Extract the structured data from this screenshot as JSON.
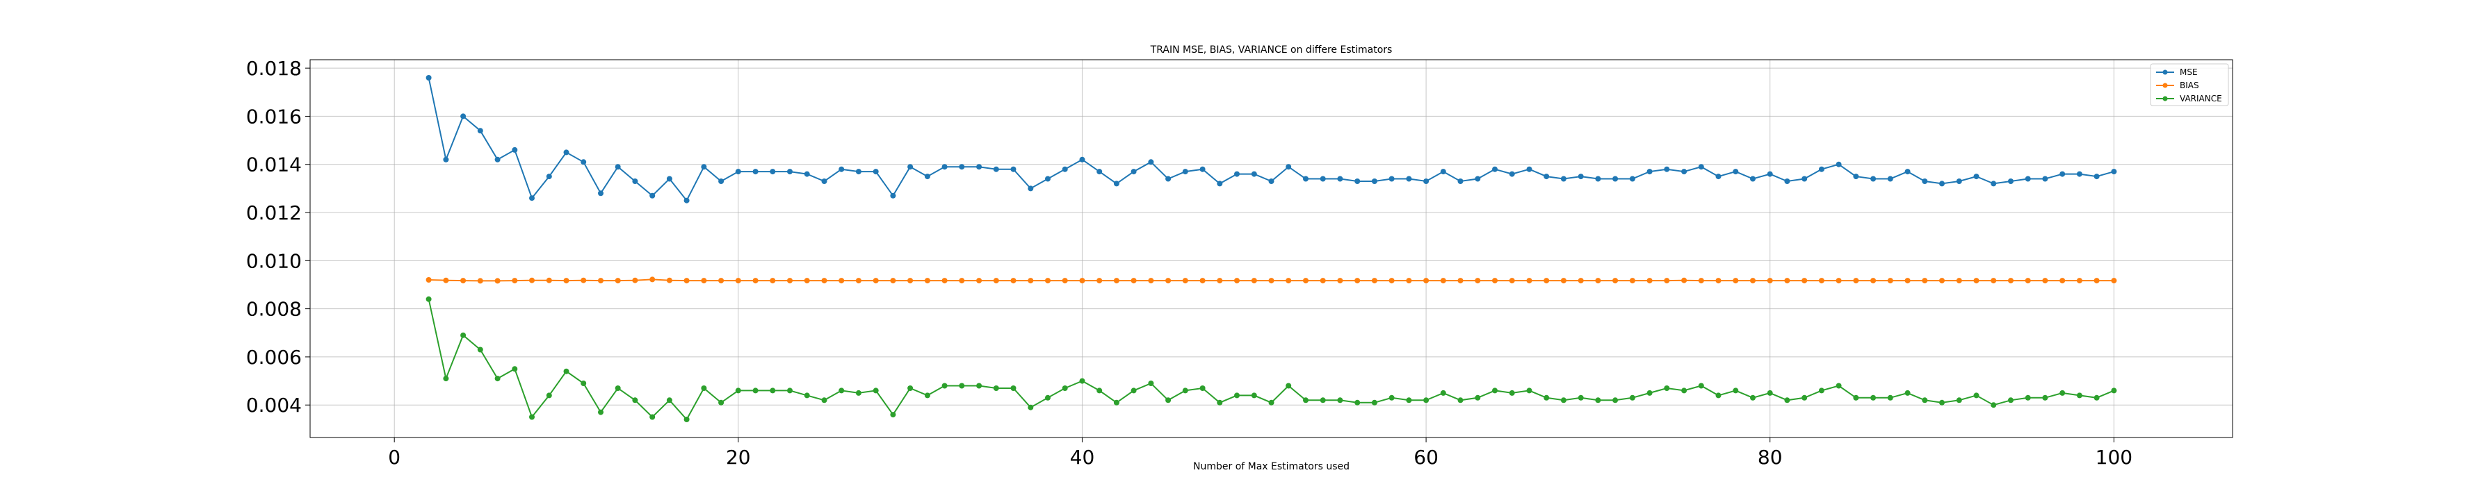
{
  "chart_data": {
    "type": "line",
    "title": "TRAIN MSE, BIAS, VARIANCE on differe Estimators",
    "xlabel": "Number of Max Estimators used",
    "ylabel": "",
    "xlim": [
      -4.9,
      106.9
    ],
    "ylim": [
      0.00265,
      0.01835
    ],
    "xticks": [
      0,
      20,
      40,
      60,
      80,
      100
    ],
    "yticks": [
      0.004,
      0.006,
      0.008,
      0.01,
      0.012,
      0.014,
      0.016,
      0.018
    ],
    "ytick_labels": [
      "0.004",
      "0.006",
      "0.008",
      "0.010",
      "0.012",
      "0.014",
      "0.016",
      "0.018"
    ],
    "grid": true,
    "legend_position": "top-right",
    "series": [
      {
        "name": "MSE",
        "color": "#1f77b4",
        "marker": "circle",
        "x_start": 2,
        "x_step": 1,
        "values": [
          0.0176,
          0.0142,
          0.016,
          0.0154,
          0.0142,
          0.0146,
          0.0126,
          0.0135,
          0.0145,
          0.0141,
          0.0128,
          0.0139,
          0.0133,
          0.0127,
          0.0134,
          0.0125,
          0.0139,
          0.0133,
          0.0137,
          0.0137,
          0.0137,
          0.0137,
          0.0136,
          0.0133,
          0.0138,
          0.0137,
          0.0137,
          0.0127,
          0.0139,
          0.0135,
          0.0139,
          0.0139,
          0.0139,
          0.0138,
          0.0138,
          0.013,
          0.0134,
          0.0138,
          0.0142,
          0.0137,
          0.0132,
          0.0137,
          0.0141,
          0.0134,
          0.0137,
          0.0138,
          0.0132,
          0.0136,
          0.0136,
          0.0133,
          0.0139,
          0.0134,
          0.0134,
          0.0134,
          0.0133,
          0.0133,
          0.0134,
          0.0134,
          0.0133,
          0.0137,
          0.0133,
          0.0134,
          0.0138,
          0.0136,
          0.0138,
          0.0135,
          0.0134,
          0.0135,
          0.0134,
          0.0134,
          0.0134,
          0.0137,
          0.0138,
          0.0137,
          0.0139,
          0.0135,
          0.0137,
          0.0134,
          0.0136,
          0.0133,
          0.0134,
          0.0138,
          0.014,
          0.0135,
          0.0134,
          0.0134,
          0.0137,
          0.0133,
          0.0132,
          0.0133,
          0.0135,
          0.0132,
          0.0133,
          0.0134,
          0.0134,
          0.0136,
          0.0136,
          0.0135,
          0.0137
        ]
      },
      {
        "name": "BIAS",
        "color": "#ff7f0e",
        "marker": "circle",
        "x_start": 2,
        "x_step": 1,
        "values": [
          0.0092,
          0.00918,
          0.00917,
          0.00916,
          0.00916,
          0.00917,
          0.00918,
          0.00918,
          0.00917,
          0.00918,
          0.00917,
          0.00917,
          0.00918,
          0.00922,
          0.00918,
          0.00917,
          0.00917,
          0.00917,
          0.00917,
          0.00917,
          0.00917,
          0.00917,
          0.00917,
          0.00917,
          0.00917,
          0.00917,
          0.00917,
          0.00917,
          0.00917,
          0.00917,
          0.00917,
          0.00917,
          0.00917,
          0.00917,
          0.00917,
          0.00917,
          0.00917,
          0.00917,
          0.00917,
          0.00917,
          0.00917,
          0.00917,
          0.00917,
          0.00917,
          0.00917,
          0.00917,
          0.00917,
          0.00917,
          0.00917,
          0.00917,
          0.00917,
          0.00917,
          0.00917,
          0.00917,
          0.00917,
          0.00917,
          0.00917,
          0.00917,
          0.00917,
          0.00917,
          0.00917,
          0.00917,
          0.00917,
          0.00917,
          0.00917,
          0.00917,
          0.00917,
          0.00917,
          0.00917,
          0.00917,
          0.00917,
          0.00917,
          0.00917,
          0.00918,
          0.00917,
          0.00917,
          0.00917,
          0.00917,
          0.00917,
          0.00917,
          0.00917,
          0.00917,
          0.00917,
          0.00917,
          0.00917,
          0.00917,
          0.00917,
          0.00917,
          0.00917,
          0.00917,
          0.00917,
          0.00917,
          0.00917,
          0.00917,
          0.00917,
          0.00917,
          0.00917,
          0.00917,
          0.00917
        ]
      },
      {
        "name": "VARIANCE",
        "color": "#2ca02c",
        "marker": "circle",
        "x_start": 2,
        "x_step": 1,
        "values": [
          0.0084,
          0.0051,
          0.0069,
          0.0063,
          0.0051,
          0.0055,
          0.0035,
          0.0044,
          0.0054,
          0.0049,
          0.0037,
          0.0047,
          0.0042,
          0.0035,
          0.0042,
          0.0034,
          0.0047,
          0.0041,
          0.0046,
          0.0046,
          0.0046,
          0.0046,
          0.0044,
          0.0042,
          0.0046,
          0.0045,
          0.0046,
          0.0036,
          0.0047,
          0.0044,
          0.0048,
          0.0048,
          0.0048,
          0.0047,
          0.0047,
          0.0039,
          0.0043,
          0.0047,
          0.005,
          0.0046,
          0.0041,
          0.0046,
          0.0049,
          0.0042,
          0.0046,
          0.0047,
          0.0041,
          0.0044,
          0.0044,
          0.0041,
          0.0048,
          0.0042,
          0.0042,
          0.0042,
          0.0041,
          0.0041,
          0.0043,
          0.0042,
          0.0042,
          0.0045,
          0.0042,
          0.0043,
          0.0046,
          0.0045,
          0.0046,
          0.0043,
          0.0042,
          0.0043,
          0.0042,
          0.0042,
          0.0043,
          0.0045,
          0.0047,
          0.0046,
          0.0048,
          0.0044,
          0.0046,
          0.0043,
          0.0045,
          0.0042,
          0.0043,
          0.0046,
          0.0048,
          0.0043,
          0.0043,
          0.0043,
          0.0045,
          0.0042,
          0.0041,
          0.0042,
          0.0044,
          0.004,
          0.0042,
          0.0043,
          0.0043,
          0.0045,
          0.0044,
          0.0043,
          0.0046
        ]
      }
    ]
  }
}
